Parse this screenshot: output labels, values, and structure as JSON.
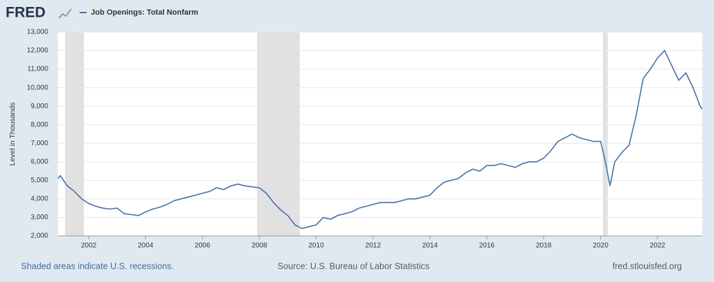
{
  "logo": "FRED",
  "footer": {
    "note": "Shaded areas indicate U.S. recessions.",
    "source": "Source: U.S. Bureau of Labor Statistics",
    "site": "fred.stlouisfed.org"
  },
  "chart_data": {
    "type": "line",
    "y_label": "Level in Thousands",
    "xlim": [
      2000.92,
      2023.57
    ],
    "xticks": [
      2002,
      2004,
      2006,
      2008,
      2010,
      2012,
      2014,
      2016,
      2018,
      2020,
      2022
    ],
    "ylim": [
      2000,
      13000
    ],
    "yticks": [
      {
        "value": 2000,
        "label": "2,000"
      },
      {
        "value": 3000,
        "label": "3,000"
      },
      {
        "value": 4000,
        "label": "4,000"
      },
      {
        "value": 5000,
        "label": "5,000"
      },
      {
        "value": 6000,
        "label": "6,000"
      },
      {
        "value": 7000,
        "label": "7,000"
      },
      {
        "value": 8000,
        "label": "8,000"
      },
      {
        "value": 9000,
        "label": "9,000"
      },
      {
        "value": 10000,
        "label": "10,000"
      },
      {
        "value": 11000,
        "label": "11,000"
      },
      {
        "value": 12000,
        "label": "12,000"
      },
      {
        "value": 13000,
        "label": "13,000"
      }
    ],
    "grid": true,
    "recessions": [
      [
        2001.17,
        2001.83
      ],
      [
        2007.92,
        2009.42
      ],
      [
        2020.08,
        2020.25
      ]
    ],
    "recession_color": "#e1e1e1",
    "x": [
      2000.92,
      2001.0,
      2001.25,
      2001.5,
      2001.75,
      2002.0,
      2002.25,
      2002.5,
      2002.75,
      2003.0,
      2003.25,
      2003.5,
      2003.75,
      2004.0,
      2004.25,
      2004.5,
      2004.75,
      2005.0,
      2005.25,
      2005.5,
      2005.75,
      2006.0,
      2006.25,
      2006.5,
      2006.75,
      2007.0,
      2007.25,
      2007.5,
      2007.75,
      2008.0,
      2008.25,
      2008.5,
      2008.75,
      2009.0,
      2009.25,
      2009.5,
      2009.75,
      2010.0,
      2010.25,
      2010.5,
      2010.75,
      2011.0,
      2011.25,
      2011.5,
      2011.75,
      2012.0,
      2012.25,
      2012.5,
      2012.75,
      2013.0,
      2013.25,
      2013.5,
      2013.75,
      2014.0,
      2014.25,
      2014.5,
      2014.75,
      2015.0,
      2015.25,
      2015.5,
      2015.75,
      2016.0,
      2016.25,
      2016.5,
      2016.75,
      2017.0,
      2017.25,
      2017.5,
      2017.75,
      2018.0,
      2018.25,
      2018.5,
      2018.75,
      2019.0,
      2019.25,
      2019.5,
      2019.75,
      2020.0,
      2020.17,
      2020.33,
      2020.5,
      2020.75,
      2021.0,
      2021.25,
      2021.5,
      2021.75,
      2022.0,
      2022.25,
      2022.5,
      2022.75,
      2023.0,
      2023.25,
      2023.5,
      2023.57
    ],
    "series": [
      {
        "name": "Job Openings: Total Nonfarm",
        "color": "#4572a7",
        "values": [
          5100,
          5250,
          4700,
          4400,
          4000,
          3750,
          3600,
          3500,
          3450,
          3500,
          3200,
          3150,
          3100,
          3300,
          3450,
          3550,
          3700,
          3900,
          4000,
          4100,
          4200,
          4300,
          4400,
          4600,
          4500,
          4700,
          4800,
          4700,
          4650,
          4600,
          4300,
          3800,
          3400,
          3100,
          2600,
          2400,
          2500,
          2600,
          3000,
          2900,
          3100,
          3200,
          3300,
          3500,
          3600,
          3700,
          3800,
          3800,
          3800,
          3900,
          4000,
          4000,
          4100,
          4200,
          4600,
          4900,
          5000,
          5100,
          5400,
          5600,
          5500,
          5800,
          5800,
          5900,
          5800,
          5700,
          5900,
          6000,
          6000,
          6200,
          6600,
          7100,
          7300,
          7500,
          7300,
          7200,
          7100,
          7100,
          6000,
          4700,
          6000,
          6500,
          6900,
          8500,
          10500,
          11000,
          11600,
          12000,
          11200,
          10400,
          10800,
          10000,
          9000,
          8850
        ]
      }
    ]
  }
}
